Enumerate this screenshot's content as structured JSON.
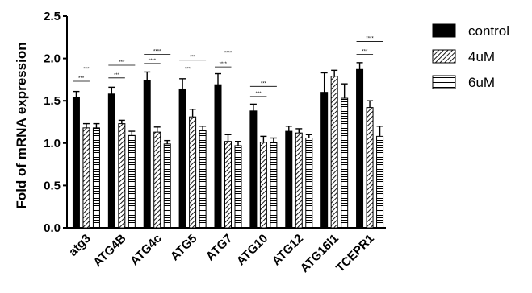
{
  "chart_data": {
    "type": "bar",
    "ylabel": "Fold of mRNA expression",
    "ylim": [
      0,
      2.5
    ],
    "yticks": [
      "0.0",
      "0.5",
      "1.0",
      "1.5",
      "2.0",
      "2.5"
    ],
    "categories": [
      "atg3",
      "ATG4B",
      "ATG4c",
      "ATG5",
      "ATG7",
      "ATG10",
      "ATG12",
      "ATG16l1",
      "TCEPR1"
    ],
    "series": [
      {
        "name": "control",
        "pattern": "solid",
        "values": [
          1.54,
          1.58,
          1.74,
          1.64,
          1.69,
          1.38,
          1.14,
          1.6,
          1.87
        ],
        "errors": [
          0.07,
          0.08,
          0.1,
          0.12,
          0.13,
          0.08,
          0.06,
          0.23,
          0.08
        ]
      },
      {
        "name": "4uM",
        "pattern": "diagonal",
        "values": [
          1.18,
          1.23,
          1.13,
          1.31,
          1.02,
          1.01,
          1.12,
          1.79,
          1.42
        ],
        "errors": [
          0.05,
          0.04,
          0.06,
          0.09,
          0.08,
          0.07,
          0.05,
          0.07,
          0.08
        ]
      },
      {
        "name": "6uM",
        "pattern": "horizontal",
        "values": [
          1.18,
          1.09,
          0.99,
          1.15,
          0.97,
          1.01,
          1.06,
          1.53,
          1.08
        ],
        "errors": [
          0.05,
          0.05,
          0.04,
          0.05,
          0.05,
          0.05,
          0.04,
          0.17,
          0.12
        ]
      }
    ],
    "significance": [
      {
        "category": "atg3",
        "brackets": [
          {
            "label": "***",
            "level": 1.73
          },
          {
            "label": "***",
            "level": 1.84
          }
        ]
      },
      {
        "category": "ATG4B",
        "brackets": [
          {
            "label": "***",
            "level": 1.77
          },
          {
            "label": "***",
            "level": 1.92
          }
        ]
      },
      {
        "category": "ATG4c",
        "brackets": [
          {
            "label": "****",
            "level": 1.94
          },
          {
            "label": "****",
            "level": 2.05
          }
        ]
      },
      {
        "category": "ATG5",
        "brackets": [
          {
            "label": "***",
            "level": 1.84
          },
          {
            "label": "***",
            "level": 1.98
          }
        ]
      },
      {
        "category": "ATG7",
        "brackets": [
          {
            "label": "****",
            "level": 1.9
          },
          {
            "label": "****",
            "level": 2.03
          }
        ]
      },
      {
        "category": "ATG10",
        "brackets": [
          {
            "label": "***",
            "level": 1.55
          },
          {
            "label": "***",
            "level": 1.67
          }
        ]
      },
      {
        "category": "TCEPR1",
        "brackets": [
          {
            "label": "***",
            "level": 2.05
          },
          {
            "label": "****",
            "level": 2.2
          }
        ]
      }
    ],
    "legend_position": "right",
    "colors": {
      "bar": "#000000",
      "fill": "#ffffff",
      "axis": "#000000"
    }
  }
}
